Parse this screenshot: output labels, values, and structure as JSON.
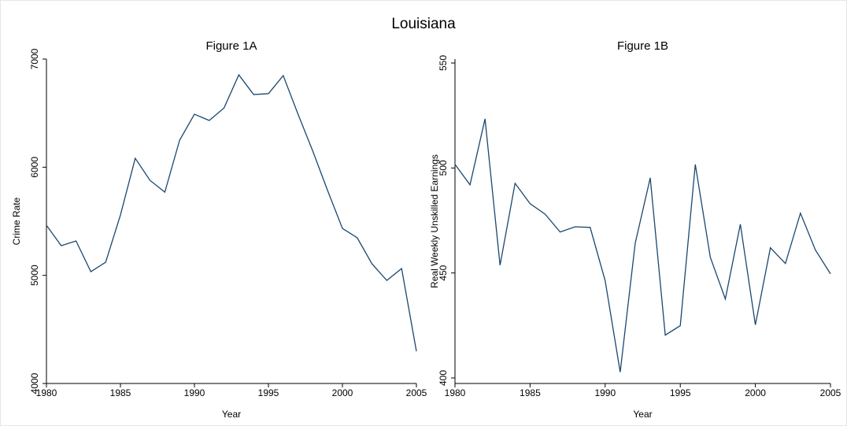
{
  "title": "Louisiana",
  "chart_data": [
    {
      "type": "line",
      "title": "Figure 1A",
      "x_label": "Year",
      "y_label": "Crime Rate",
      "x": [
        1980,
        1981,
        1982,
        1983,
        1984,
        1985,
        1986,
        1987,
        1988,
        1989,
        1990,
        1991,
        1992,
        1993,
        1994,
        1995,
        1996,
        1997,
        1998,
        1999,
        2000,
        2001,
        2002,
        2003,
        2004,
        2005
      ],
      "values": [
        5463,
        5274,
        5318,
        5034,
        5121,
        5558,
        6082,
        5878,
        5769,
        6250,
        6490,
        6432,
        6548,
        6854,
        6672,
        6680,
        6847,
        6490,
        6148,
        5784,
        5434,
        5347,
        5106,
        4953,
        5063,
        4298
      ],
      "color": "#1a476f",
      "xlim": [
        1980,
        2005
      ],
      "xticks": [
        1980,
        1985,
        1990,
        1995,
        2000,
        2005
      ],
      "ylim": [
        4000,
        7000
      ],
      "yticks": [
        4000,
        5000,
        6000,
        7000
      ]
    },
    {
      "type": "line",
      "title": "Figure 1B",
      "x_label": "Year",
      "y_label": "Real Weekly Unskilled Earnings",
      "x": [
        1980,
        1981,
        1982,
        1983,
        1984,
        1985,
        1986,
        1987,
        1988,
        1989,
        1990,
        1991,
        1992,
        1993,
        1994,
        1995,
        1996,
        1997,
        1998,
        1999,
        2000,
        2001,
        2002,
        2003,
        2004,
        2005
      ],
      "values": [
        501.7,
        492,
        523.4,
        453.7,
        492.7,
        483,
        478,
        469.5,
        472,
        471.7,
        446.3,
        402.8,
        464.2,
        495.3,
        420.4,
        424.9,
        501.7,
        457.5,
        437.6,
        473.2,
        425.3,
        462,
        454.5,
        478.5,
        460.9,
        449.6
      ],
      "color": "#1a476f",
      "xlim": [
        1980,
        2005
      ],
      "xticks": [
        1980,
        1985,
        1990,
        1995,
        2000,
        2005
      ],
      "ylim": [
        400,
        550
      ],
      "yticks": [
        400,
        450,
        500,
        550
      ]
    }
  ]
}
